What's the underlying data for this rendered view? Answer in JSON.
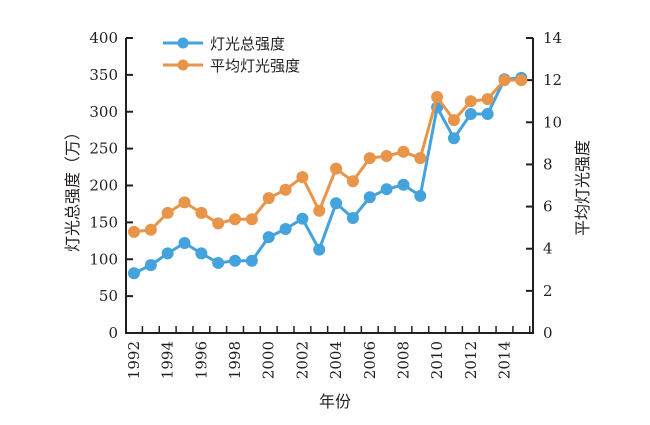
{
  "chart_data": {
    "type": "line",
    "title": "",
    "xlabel": "年份",
    "ylabel": "灯光总强度（万）",
    "y2label": "平均灯光强度",
    "ylim": [
      0,
      400
    ],
    "y2lim": [
      0,
      14
    ],
    "yticks": [
      "0",
      "50",
      "100",
      "150",
      "200",
      "250",
      "300",
      "350",
      "400"
    ],
    "y2ticks": [
      "0",
      "2",
      "4",
      "6",
      "8",
      "10",
      "12",
      "14"
    ],
    "x": [
      1992,
      1993,
      1994,
      1995,
      1996,
      1997,
      1998,
      1999,
      2000,
      2001,
      2002,
      2003,
      2004,
      2005,
      2006,
      2007,
      2008,
      2009,
      2010,
      2011,
      2012,
      2013,
      2014,
      2015
    ],
    "xticks": [
      "1992",
      "1994",
      "1996",
      "1998",
      "2000",
      "2002",
      "2004",
      "2006",
      "2008",
      "2010",
      "2012",
      "2014"
    ],
    "grid": false,
    "legend_position": "top-left",
    "series": [
      {
        "name": "灯光总强度",
        "axis": "left",
        "color": "#44a2dc",
        "values": [
          81,
          92,
          108,
          122,
          108,
          95,
          98,
          98,
          130,
          141,
          155,
          113,
          176,
          156,
          184,
          195,
          201,
          186,
          306,
          264,
          297,
          297,
          344,
          346
        ]
      },
      {
        "name": "平均灯光强度",
        "axis": "right",
        "color": "#e8954a",
        "values": [
          4.8,
          4.9,
          5.7,
          6.2,
          5.7,
          5.2,
          5.4,
          5.4,
          6.4,
          6.8,
          7.4,
          5.8,
          7.8,
          7.2,
          8.3,
          8.4,
          8.6,
          8.3,
          11.2,
          10.1,
          11.0,
          11.1,
          12.0,
          12.0
        ]
      }
    ]
  }
}
